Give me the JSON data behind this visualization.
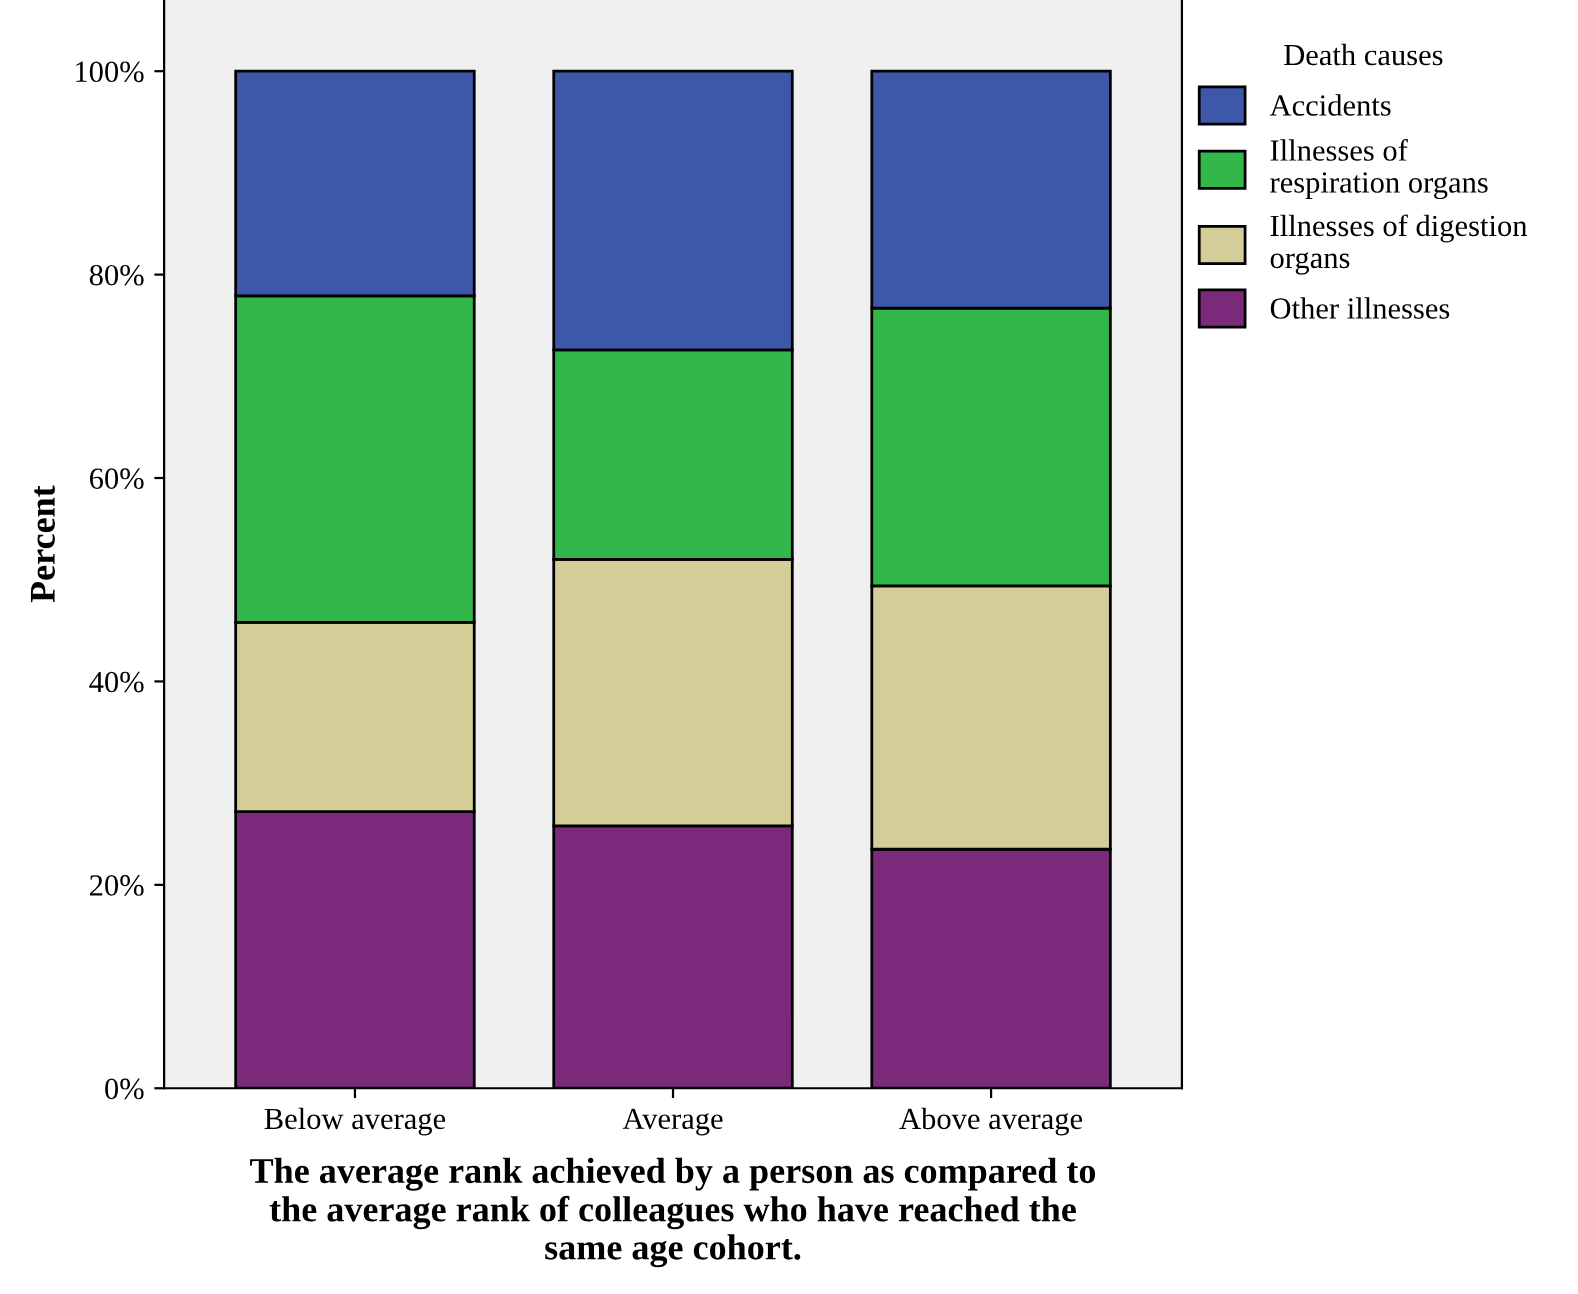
{
  "chart_data": {
    "type": "bar",
    "stacked": true,
    "categories": [
      "Below average",
      "Average",
      "Above average"
    ],
    "xlabel": "The average rank achieved by a person as compared to\nthe average rank of colleagues who have reached the\nsame age cohort.",
    "ylabel": "Percent",
    "legend_title": "Death causes",
    "legend": "top right",
    "series": [
      {
        "name": "Other illnesses",
        "color": "#7b2a7b",
        "values": [
          27.2,
          25.8,
          23.5
        ]
      },
      {
        "name": "Illnesses of digestion\norgans",
        "color": "#d4cd97",
        "values": [
          18.6,
          26.2,
          25.9
        ]
      },
      {
        "name": "Illnesses of\nrespiration organs",
        "color": "#31b74a",
        "values": [
          32.1,
          20.6,
          27.3
        ]
      },
      {
        "name": "Accidents",
        "color": "#3d58a9",
        "values": [
          22.1,
          27.4,
          23.3
        ]
      }
    ],
    "ylim": [
      0,
      107
    ],
    "yticks": [
      {
        "value": 0,
        "label": "0%"
      },
      {
        "value": 20,
        "label": "20%"
      },
      {
        "value": 40,
        "label": "40%"
      },
      {
        "value": 60,
        "label": "60%"
      },
      {
        "value": 80,
        "label": "80%"
      },
      {
        "value": 100,
        "label": "100%"
      }
    ],
    "grid": false
  }
}
